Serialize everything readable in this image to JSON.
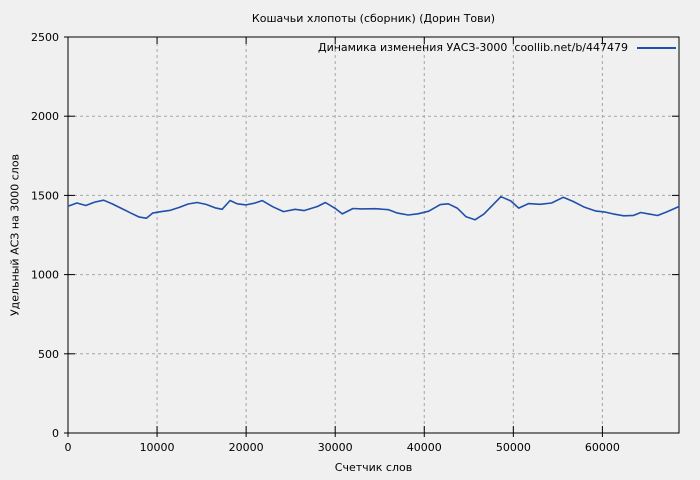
{
  "colors": {
    "background": "#f0f0f0",
    "border": "#000000",
    "grid": "#a6a6a6",
    "text": "#000000",
    "line": "#2050ab"
  },
  "chart_data": {
    "type": "line",
    "title": "Кошачьи хлопоты (сборник) (Дорин Тови)",
    "xlabel": "Счетчик слов",
    "ylabel": "Удельный АСЗ на 3000 слов",
    "legend_label": "Динамика изменения УАСЗ-3000  coollib.net/b/447479",
    "legend_position": "top-right-inside",
    "grid": true,
    "xlim": [
      0,
      68600
    ],
    "ylim": [
      0,
      2500
    ],
    "x_ticks": [
      0,
      10000,
      20000,
      30000,
      40000,
      50000,
      60000
    ],
    "y_ticks": [
      0,
      500,
      1000,
      1500,
      2000,
      2500
    ],
    "series": [
      {
        "name": "Динамика изменения УАСЗ-3000  coollib.net/b/447479",
        "color": "#2050ab",
        "points": [
          [
            0,
            1432
          ],
          [
            1000,
            1452
          ],
          [
            2000,
            1436
          ],
          [
            3000,
            1458
          ],
          [
            4000,
            1470
          ],
          [
            5000,
            1446
          ],
          [
            6000,
            1418
          ],
          [
            7000,
            1390
          ],
          [
            8000,
            1363
          ],
          [
            8800,
            1356
          ],
          [
            9500,
            1388
          ],
          [
            10500,
            1398
          ],
          [
            11500,
            1406
          ],
          [
            12500,
            1424
          ],
          [
            13500,
            1446
          ],
          [
            14500,
            1455
          ],
          [
            15500,
            1443
          ],
          [
            16500,
            1422
          ],
          [
            17300,
            1412
          ],
          [
            18200,
            1468
          ],
          [
            19000,
            1447
          ],
          [
            20000,
            1440
          ],
          [
            21000,
            1452
          ],
          [
            21800,
            1467
          ],
          [
            23000,
            1428
          ],
          [
            24200,
            1398
          ],
          [
            25500,
            1412
          ],
          [
            26500,
            1404
          ],
          [
            28000,
            1430
          ],
          [
            28900,
            1455
          ],
          [
            30000,
            1418
          ],
          [
            30800,
            1383
          ],
          [
            32000,
            1417
          ],
          [
            33000,
            1415
          ],
          [
            34500,
            1416
          ],
          [
            36000,
            1410
          ],
          [
            37000,
            1388
          ],
          [
            38200,
            1376
          ],
          [
            39300,
            1384
          ],
          [
            40500,
            1400
          ],
          [
            41800,
            1442
          ],
          [
            42700,
            1447
          ],
          [
            43700,
            1420
          ],
          [
            44700,
            1365
          ],
          [
            45700,
            1346
          ],
          [
            46700,
            1382
          ],
          [
            47700,
            1440
          ],
          [
            48600,
            1492
          ],
          [
            49700,
            1465
          ],
          [
            50600,
            1420
          ],
          [
            51700,
            1448
          ],
          [
            53000,
            1444
          ],
          [
            54300,
            1452
          ],
          [
            55600,
            1488
          ],
          [
            56700,
            1462
          ],
          [
            58000,
            1425
          ],
          [
            59200,
            1402
          ],
          [
            60200,
            1396
          ],
          [
            61200,
            1383
          ],
          [
            62400,
            1371
          ],
          [
            63500,
            1374
          ],
          [
            64300,
            1392
          ],
          [
            65200,
            1383
          ],
          [
            66200,
            1373
          ],
          [
            67200,
            1395
          ],
          [
            68000,
            1415
          ],
          [
            68600,
            1430
          ]
        ]
      }
    ]
  }
}
